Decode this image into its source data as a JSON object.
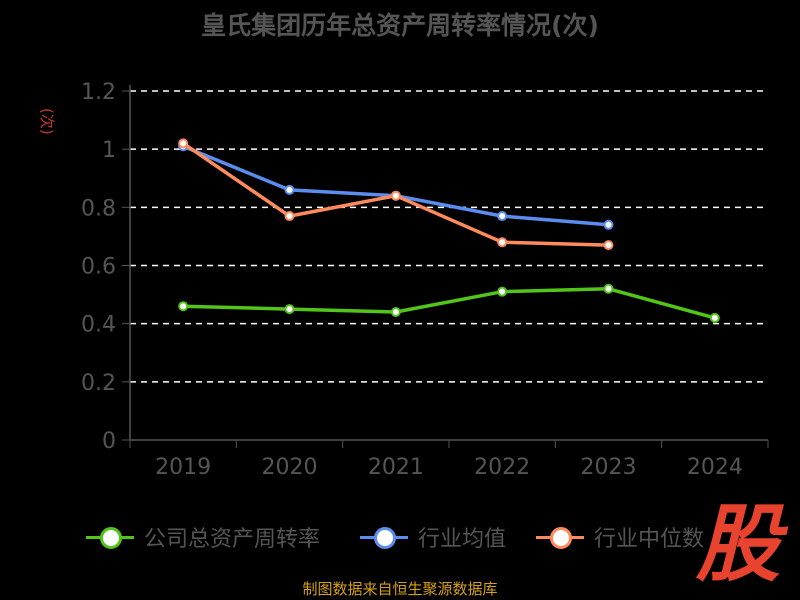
{
  "title": "皇氏集团历年总资产周转率情况(次)",
  "unit_label": "(次)",
  "source": "制图数据来自恒生聚源数据库",
  "watermark": "股",
  "chart_data": {
    "type": "line",
    "title": "皇氏集团历年总资产周转率情况(次)",
    "xlabel": "",
    "ylabel": "(次)",
    "categories": [
      "2019",
      "2020",
      "2021",
      "2022",
      "2023",
      "2024"
    ],
    "ylim": [
      0,
      1.2
    ],
    "yticks": [
      "0",
      "0.2",
      "0.4",
      "0.6",
      "0.8",
      "1",
      "1.2"
    ],
    "grid": true,
    "legend_position": "bottom",
    "series": [
      {
        "name": "公司总资产周转率",
        "color": "#52c41a",
        "values": [
          0.46,
          0.45,
          0.44,
          0.51,
          0.52,
          0.42
        ]
      },
      {
        "name": "行业均值",
        "color": "#5b8def",
        "values": [
          1.01,
          0.86,
          0.84,
          0.77,
          0.74,
          null
        ]
      },
      {
        "name": "行业中位数",
        "color": "#ff8a5c",
        "values": [
          1.02,
          0.77,
          0.84,
          0.68,
          0.67,
          null
        ]
      }
    ]
  }
}
